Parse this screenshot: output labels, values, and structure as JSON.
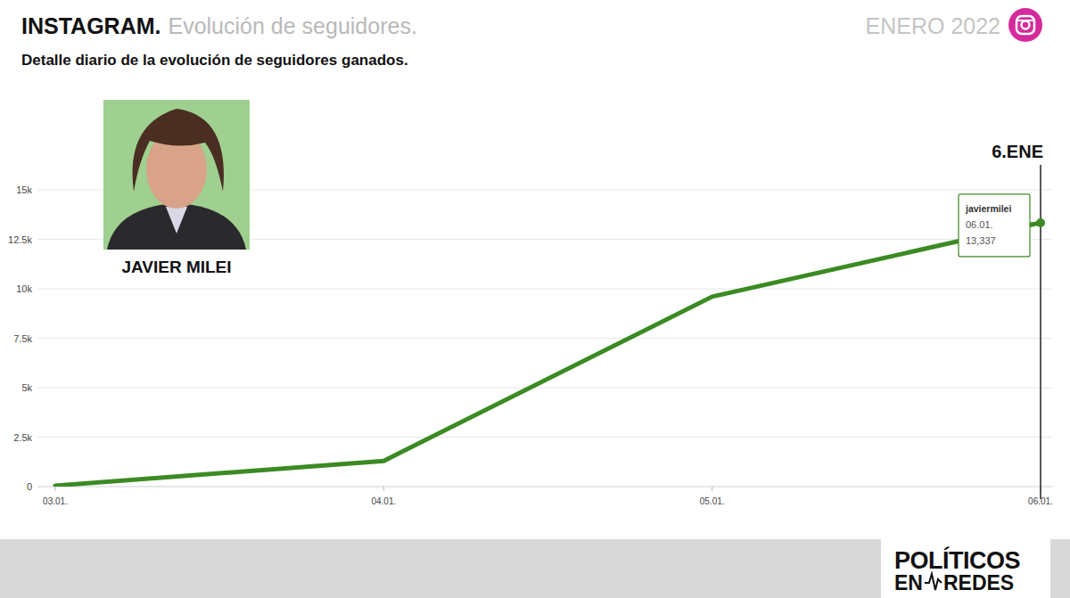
{
  "chart_data": {
    "type": "line",
    "title": "INSTAGRAM.",
    "subtitle": "Evolución de seguidores.",
    "period": "ENERO 2022",
    "description": "Detalle diario de la evolución de seguidores ganados.",
    "person": "JAVIER MILEI",
    "categories": [
      "03.01.",
      "04.01.",
      "05.01.",
      "06.01."
    ],
    "series": [
      {
        "name": "javiermilei",
        "color": "#3c8a24",
        "values": [
          50,
          1300,
          9600,
          13337
        ],
        "value_labels": [
          null,
          null,
          null,
          "13,337"
        ]
      }
    ],
    "ylim": [
      0,
      15000
    ],
    "yticks": [
      0,
      {
        "value": 2500,
        "label": "2.5k"
      },
      {
        "value": 5000,
        "label": "5k"
      },
      {
        "value": 7500,
        "label": "7.5k"
      },
      {
        "value": 10000,
        "label": "10k"
      },
      {
        "value": 12500,
        "label": "12.5k"
      },
      {
        "value": 15000,
        "label": "15k"
      }
    ],
    "grid": true,
    "annotations": [
      "6.ENE"
    ],
    "source": [
      "POLÍTICOS",
      "EN",
      "REDES"
    ]
  }
}
